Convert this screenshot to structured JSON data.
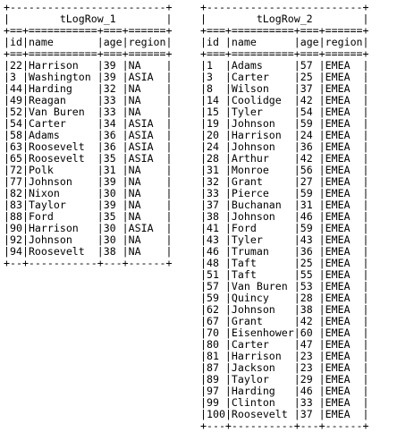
{
  "tables": [
    {
      "title": "tLogRow_1",
      "columns": [
        "id",
        "name",
        "age",
        "region"
      ],
      "widths": [
        2,
        11,
        3,
        6
      ],
      "rows": [
        [
          "22",
          "Harrison",
          "39",
          "NA"
        ],
        [
          "3",
          "Washington",
          "39",
          "ASIA"
        ],
        [
          "44",
          "Harding",
          "32",
          "NA"
        ],
        [
          "49",
          "Reagan",
          "33",
          "NA"
        ],
        [
          "52",
          "Van Buren",
          "33",
          "NA"
        ],
        [
          "54",
          "Carter",
          "34",
          "ASIA"
        ],
        [
          "58",
          "Adams",
          "36",
          "ASIA"
        ],
        [
          "63",
          "Roosevelt",
          "36",
          "ASIA"
        ],
        [
          "65",
          "Roosevelt",
          "35",
          "ASIA"
        ],
        [
          "72",
          "Polk",
          "31",
          "NA"
        ],
        [
          "77",
          "Johnson",
          "39",
          "NA"
        ],
        [
          "82",
          "Nixon",
          "30",
          "NA"
        ],
        [
          "83",
          "Taylor",
          "39",
          "NA"
        ],
        [
          "88",
          "Ford",
          "35",
          "NA"
        ],
        [
          "90",
          "Harrison",
          "30",
          "ASIA"
        ],
        [
          "92",
          "Johnson",
          "30",
          "NA"
        ],
        [
          "94",
          "Roosevelt",
          "38",
          "NA"
        ]
      ]
    },
    {
      "title": "tLogRow_2",
      "columns": [
        "id",
        "name",
        "age",
        "region"
      ],
      "widths": [
        3,
        10,
        3,
        6
      ],
      "rows": [
        [
          "1",
          "Adams",
          "57",
          "EMEA"
        ],
        [
          "3",
          "Carter",
          "25",
          "EMEA"
        ],
        [
          "8",
          "Wilson",
          "37",
          "EMEA"
        ],
        [
          "14",
          "Coolidge",
          "42",
          "EMEA"
        ],
        [
          "15",
          "Tyler",
          "54",
          "EMEA"
        ],
        [
          "19",
          "Johnson",
          "59",
          "EMEA"
        ],
        [
          "20",
          "Harrison",
          "24",
          "EMEA"
        ],
        [
          "24",
          "Johnson",
          "36",
          "EMEA"
        ],
        [
          "28",
          "Arthur",
          "42",
          "EMEA"
        ],
        [
          "31",
          "Monroe",
          "56",
          "EMEA"
        ],
        [
          "32",
          "Grant",
          "27",
          "EMEA"
        ],
        [
          "33",
          "Pierce",
          "59",
          "EMEA"
        ],
        [
          "37",
          "Buchanan",
          "31",
          "EMEA"
        ],
        [
          "38",
          "Johnson",
          "46",
          "EMEA"
        ],
        [
          "41",
          "Ford",
          "59",
          "EMEA"
        ],
        [
          "43",
          "Tyler",
          "43",
          "EMEA"
        ],
        [
          "46",
          "Truman",
          "36",
          "EMEA"
        ],
        [
          "48",
          "Taft",
          "25",
          "EMEA"
        ],
        [
          "51",
          "Taft",
          "55",
          "EMEA"
        ],
        [
          "57",
          "Van Buren",
          "53",
          "EMEA"
        ],
        [
          "59",
          "Quincy",
          "28",
          "EMEA"
        ],
        [
          "62",
          "Johnson",
          "38",
          "EMEA"
        ],
        [
          "67",
          "Grant",
          "42",
          "EMEA"
        ],
        [
          "70",
          "Eisenhower",
          "60",
          "EMEA"
        ],
        [
          "80",
          "Carter",
          "47",
          "EMEA"
        ],
        [
          "81",
          "Harrison",
          "23",
          "EMEA"
        ],
        [
          "87",
          "Jackson",
          "23",
          "EMEA"
        ],
        [
          "89",
          "Taylor",
          "29",
          "EMEA"
        ],
        [
          "97",
          "Harding",
          "46",
          "EMEA"
        ],
        [
          "99",
          "Clinton",
          "33",
          "EMEA"
        ],
        [
          "100",
          "Roosevelt",
          "37",
          "EMEA"
        ]
      ]
    }
  ]
}
